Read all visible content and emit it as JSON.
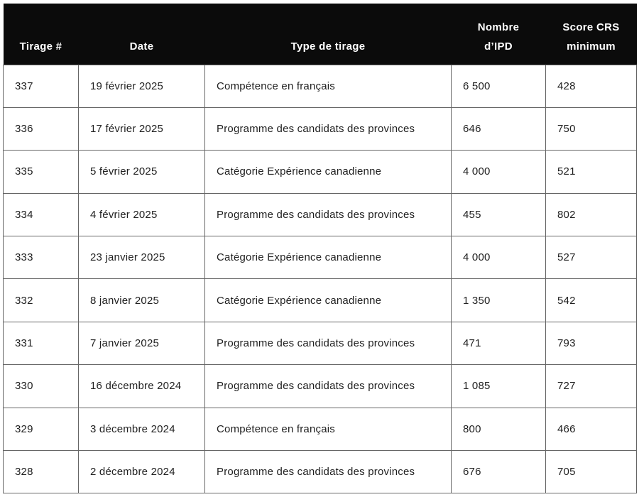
{
  "colors": {
    "header_background": "#0b0b0b",
    "header_text": "#ffffff",
    "cell_border": "#666666",
    "body_text": "#212121",
    "page_background": "#ffffff"
  },
  "table": {
    "columns": [
      "Tirage #",
      "Date",
      "Type de tirage",
      "Nombre\nd’IPD",
      "Score CRS\nminimum"
    ],
    "rows": [
      [
        "337",
        "19 février 2025",
        "Compétence en français",
        "6 500",
        "428"
      ],
      [
        "336",
        "17 février 2025",
        "Programme des candidats des provinces",
        "646",
        "750"
      ],
      [
        "335",
        "5 février 2025",
        "Catégorie Expérience canadienne",
        "4 000",
        "521"
      ],
      [
        "334",
        "4 février 2025",
        "Programme des candidats des provinces",
        "455",
        "802"
      ],
      [
        "333",
        "23 janvier 2025",
        "Catégorie Expérience canadienne",
        "4 000",
        "527"
      ],
      [
        "332",
        "8 janvier 2025",
        "Catégorie Expérience canadienne",
        "1 350",
        "542"
      ],
      [
        "331",
        "7 janvier 2025",
        "Programme des candidats des provinces",
        "471",
        "793"
      ],
      [
        "330",
        "16 décembre 2024",
        "Programme des candidats des provinces",
        "1 085",
        "727"
      ],
      [
        "329",
        "3 décembre 2024",
        "Compétence en français",
        "800",
        "466"
      ],
      [
        "328",
        "2 décembre 2024",
        "Programme des candidats des provinces",
        "676",
        "705"
      ]
    ]
  }
}
